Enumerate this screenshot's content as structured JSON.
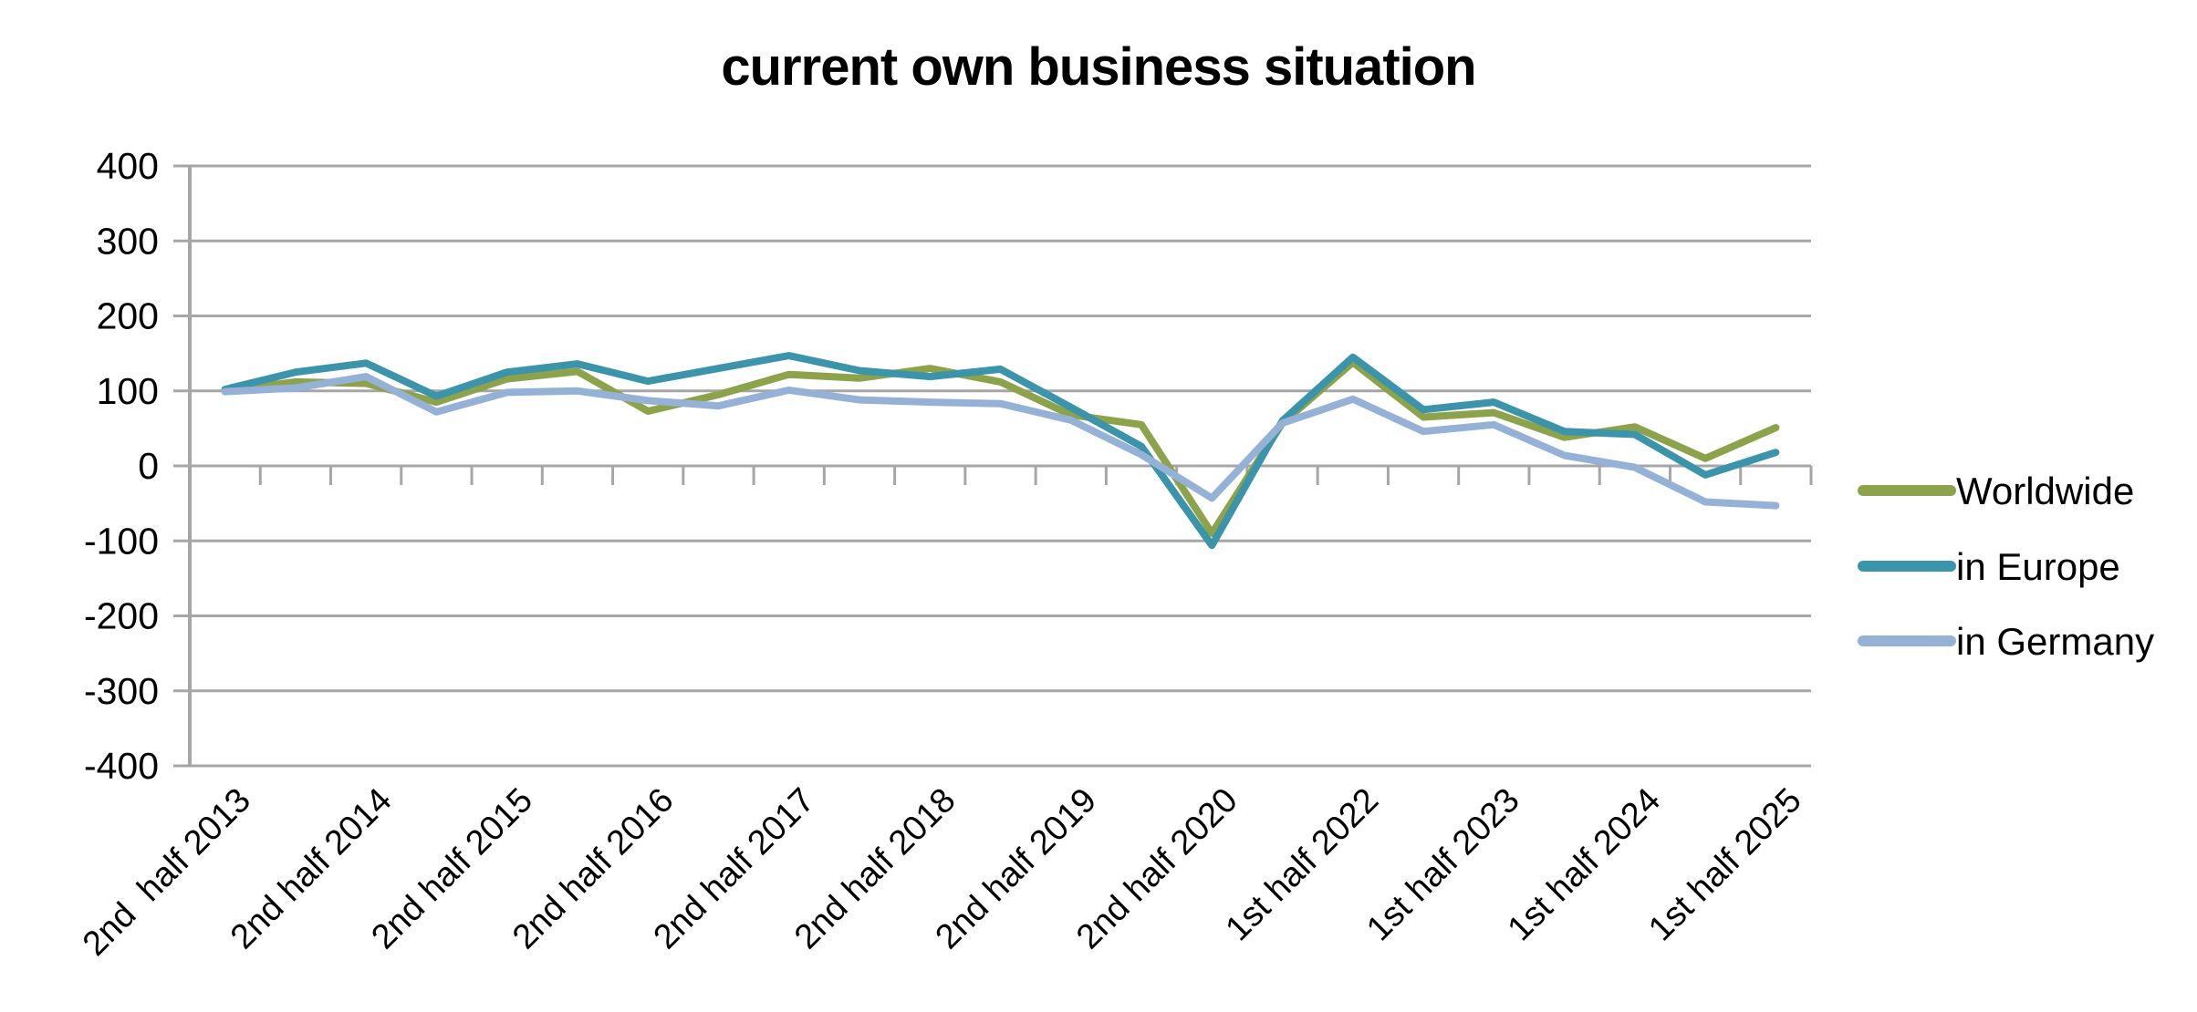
{
  "title": "current own business situation",
  "legend": [
    {
      "label": "Worldwide",
      "color": "#8CA24B"
    },
    {
      "label": "in Europe",
      "color": "#3B94A9"
    },
    {
      "label": "in Germany",
      "color": "#95B2D6"
    }
  ],
  "axis_colors": {
    "grid": "#A6A6A6",
    "text": "#000000"
  },
  "y_axis": {
    "tick_labels": [
      "400",
      "300",
      "200",
      "100",
      "0",
      "-100",
      "-200",
      "-300",
      "-400"
    ]
  },
  "chart_data": {
    "type": "line",
    "title": "current own business situation",
    "n_points": 23,
    "x_labels_every": 2,
    "x_tick_labels": [
      "2nd  half 2013",
      "2nd half 2014",
      "2nd half 2015",
      "2nd half 2016",
      "2nd half 2017",
      "2nd half 2018",
      "2nd half 2019",
      "2nd half 2020",
      "1st half 2022",
      "1st half 2023",
      "1st half 2024",
      "1st half 2025"
    ],
    "ylim": [
      -400,
      400
    ],
    "ytick_step": 100,
    "grid": "horizontal",
    "legend_position": "right",
    "series": [
      {
        "name": "Worldwide",
        "color": "#8CA24B",
        "values": [
          100,
          112,
          110,
          85,
          116,
          126,
          73,
          95,
          122,
          117,
          130,
          112,
          68,
          55,
          -90,
          57,
          138,
          65,
          71,
          38,
          52,
          10,
          51
        ]
      },
      {
        "name": "in Europe",
        "color": "#3B94A9",
        "values": [
          102,
          125,
          137,
          93,
          125,
          136,
          113,
          130,
          147,
          127,
          119,
          129,
          78,
          26,
          -106,
          60,
          145,
          75,
          85,
          46,
          42,
          -12,
          18
        ]
      },
      {
        "name": "in Germany",
        "color": "#95B2D6",
        "values": [
          99,
          104,
          119,
          72,
          98,
          100,
          87,
          80,
          101,
          88,
          85,
          83,
          61,
          15,
          -43,
          57,
          89,
          46,
          55,
          14,
          -2,
          -48,
          -53
        ]
      }
    ]
  }
}
